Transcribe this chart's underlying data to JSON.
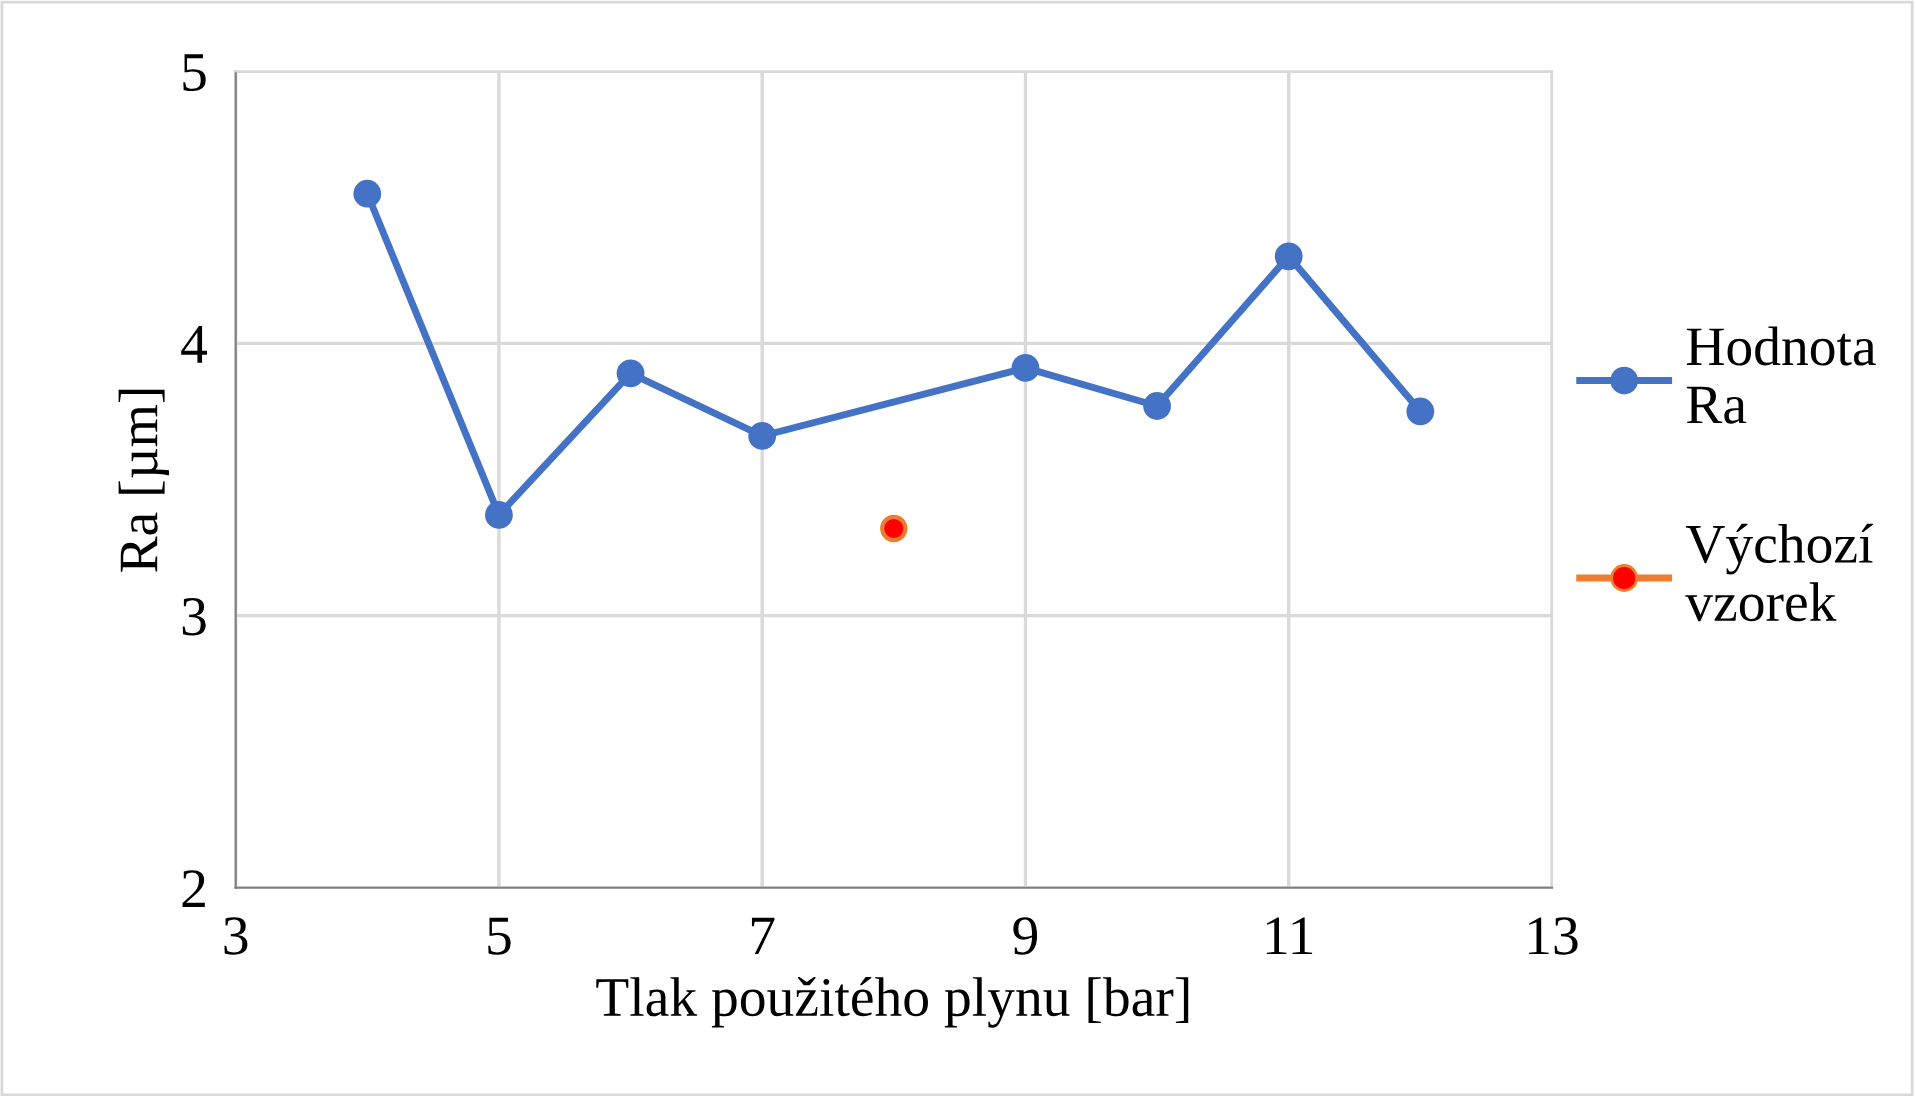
{
  "chart_data": {
    "type": "line",
    "xlabel": "Tlak použitého plynu [bar]",
    "ylabel": "Ra [µm]",
    "xlim": [
      3,
      13
    ],
    "xticks": [
      3,
      5,
      7,
      9,
      11,
      13
    ],
    "ylim": [
      2,
      5
    ],
    "yticks": [
      2,
      3,
      4,
      5
    ],
    "grid": true,
    "legend": "right",
    "marker": "circle",
    "series": [
      {
        "name": "Hodnota Ra",
        "color": "#4472c4",
        "x": [
          4,
          5,
          6,
          7,
          9,
          10,
          11,
          12
        ],
        "values": [
          4.55,
          3.37,
          3.89,
          3.66,
          3.91,
          3.77,
          4.32,
          3.75
        ]
      },
      {
        "name": "Výchozí vzorek",
        "color": "#ed7d31",
        "type": "scatter",
        "colors": [
          "#ff0000"
        ],
        "x": [
          8
        ],
        "values": [
          3.32
        ]
      }
    ]
  }
}
